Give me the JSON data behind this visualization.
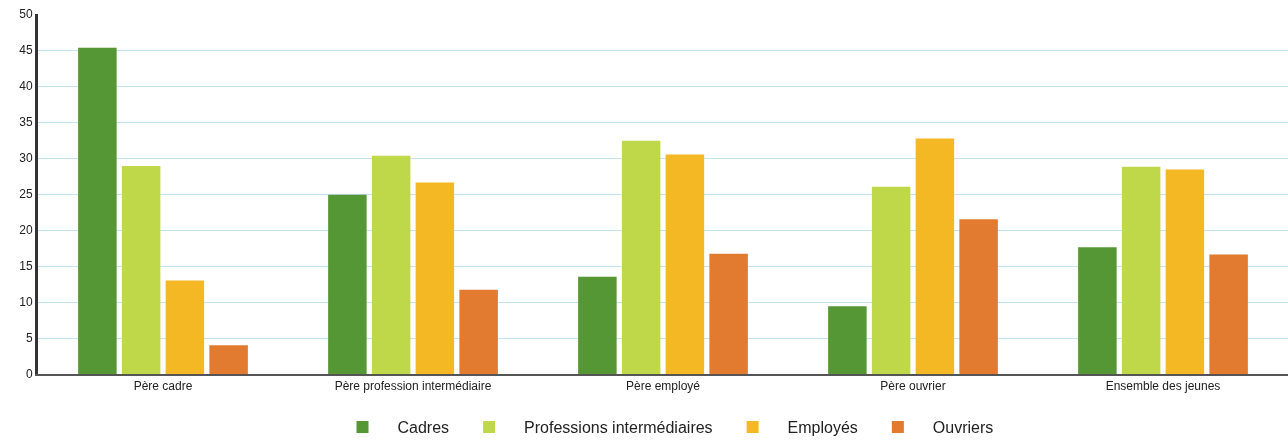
{
  "chart_data": {
    "type": "bar",
    "categories": [
      "Père cadre",
      "Père profession intermédiaire",
      "Père employé",
      "Père ouvrier",
      "Ensemble des jeunes"
    ],
    "series": [
      {
        "name": "Cadres",
        "color": "#559735",
        "values": [
          45.3,
          24.9,
          13.5,
          9.4,
          17.6
        ]
      },
      {
        "name": "Professions intermédiaires",
        "color": "#bfd84a",
        "values": [
          28.9,
          30.3,
          32.4,
          26.0,
          28.8
        ]
      },
      {
        "name": "Employés",
        "color": "#f4b824",
        "values": [
          13.0,
          26.6,
          30.5,
          32.7,
          28.4
        ]
      },
      {
        "name": "Ouvriers",
        "color": "#e27a30",
        "values": [
          4.0,
          11.7,
          16.7,
          21.5,
          16.6
        ]
      }
    ],
    "ylim": [
      0,
      50
    ],
    "yticks": [
      0,
      5,
      10,
      15,
      20,
      25,
      30,
      35,
      40,
      45,
      50
    ],
    "grid": "y",
    "legend": "bottom"
  }
}
